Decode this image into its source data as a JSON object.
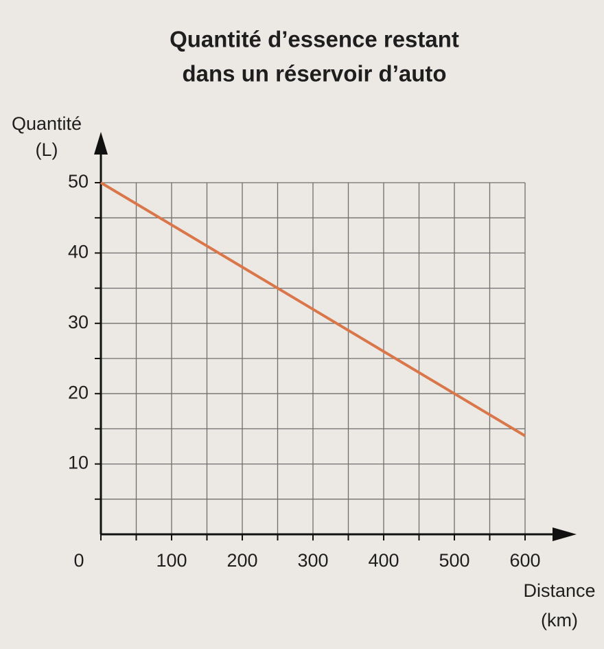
{
  "chart_data": {
    "type": "line",
    "title": [
      "Quantité d’essence restant",
      "dans un réservoir d’auto"
    ],
    "ylabel": [
      "Quantité",
      "(L)"
    ],
    "xlabel": [
      "Distance",
      "(km)"
    ],
    "x": [
      0,
      100,
      200,
      300,
      400,
      500,
      600
    ],
    "values": [
      50,
      44,
      38,
      32,
      26,
      20,
      14
    ],
    "color": "#d9774a",
    "xlim": [
      0,
      600
    ],
    "ylim": [
      0,
      50
    ],
    "xticks": [
      0,
      100,
      200,
      300,
      400,
      500,
      600
    ],
    "yticks": [
      10,
      20,
      30,
      40,
      50
    ],
    "minor_xticks": [
      50,
      150,
      250,
      350,
      450,
      550
    ],
    "minor_yticks": [
      5,
      15,
      25,
      35,
      45
    ],
    "grid": true
  }
}
